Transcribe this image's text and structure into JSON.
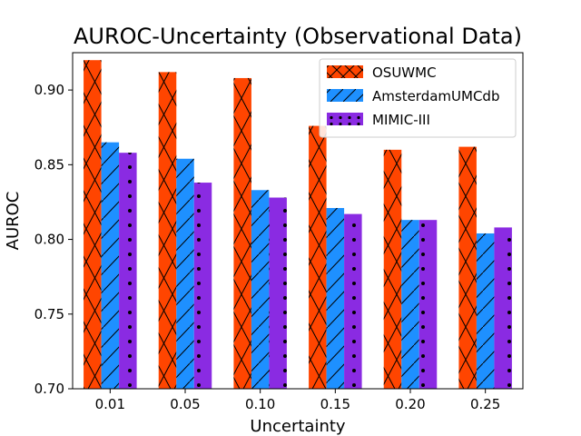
{
  "chart_data": {
    "type": "bar",
    "title": "AUROC-Uncertainty (Observational Data)",
    "xlabel": "Uncertainty",
    "ylabel": "AUROC",
    "categories": [
      "0.01",
      "0.05",
      "0.10",
      "0.15",
      "0.20",
      "0.25"
    ],
    "ylim": [
      0.7,
      0.925
    ],
    "yticks": [
      "0.70",
      "0.75",
      "0.80",
      "0.85",
      "0.90"
    ],
    "ytick_values": [
      0.7,
      0.75,
      0.8,
      0.85,
      0.9
    ],
    "grid": false,
    "legend_position": "top-right",
    "series": [
      {
        "name": "OSUWMC",
        "color": "#ff4500",
        "hatch": "cross",
        "values": [
          0.92,
          0.912,
          0.908,
          0.876,
          0.86,
          0.862
        ]
      },
      {
        "name": "AmsterdamUMCdb",
        "color": "#1e90ff",
        "hatch": "slash",
        "values": [
          0.865,
          0.854,
          0.833,
          0.821,
          0.813,
          0.804
        ]
      },
      {
        "name": "MIMIC-III",
        "color": "#8a2be2",
        "hatch": "dots",
        "values": [
          0.858,
          0.838,
          0.828,
          0.817,
          0.813,
          0.808
        ]
      }
    ]
  }
}
